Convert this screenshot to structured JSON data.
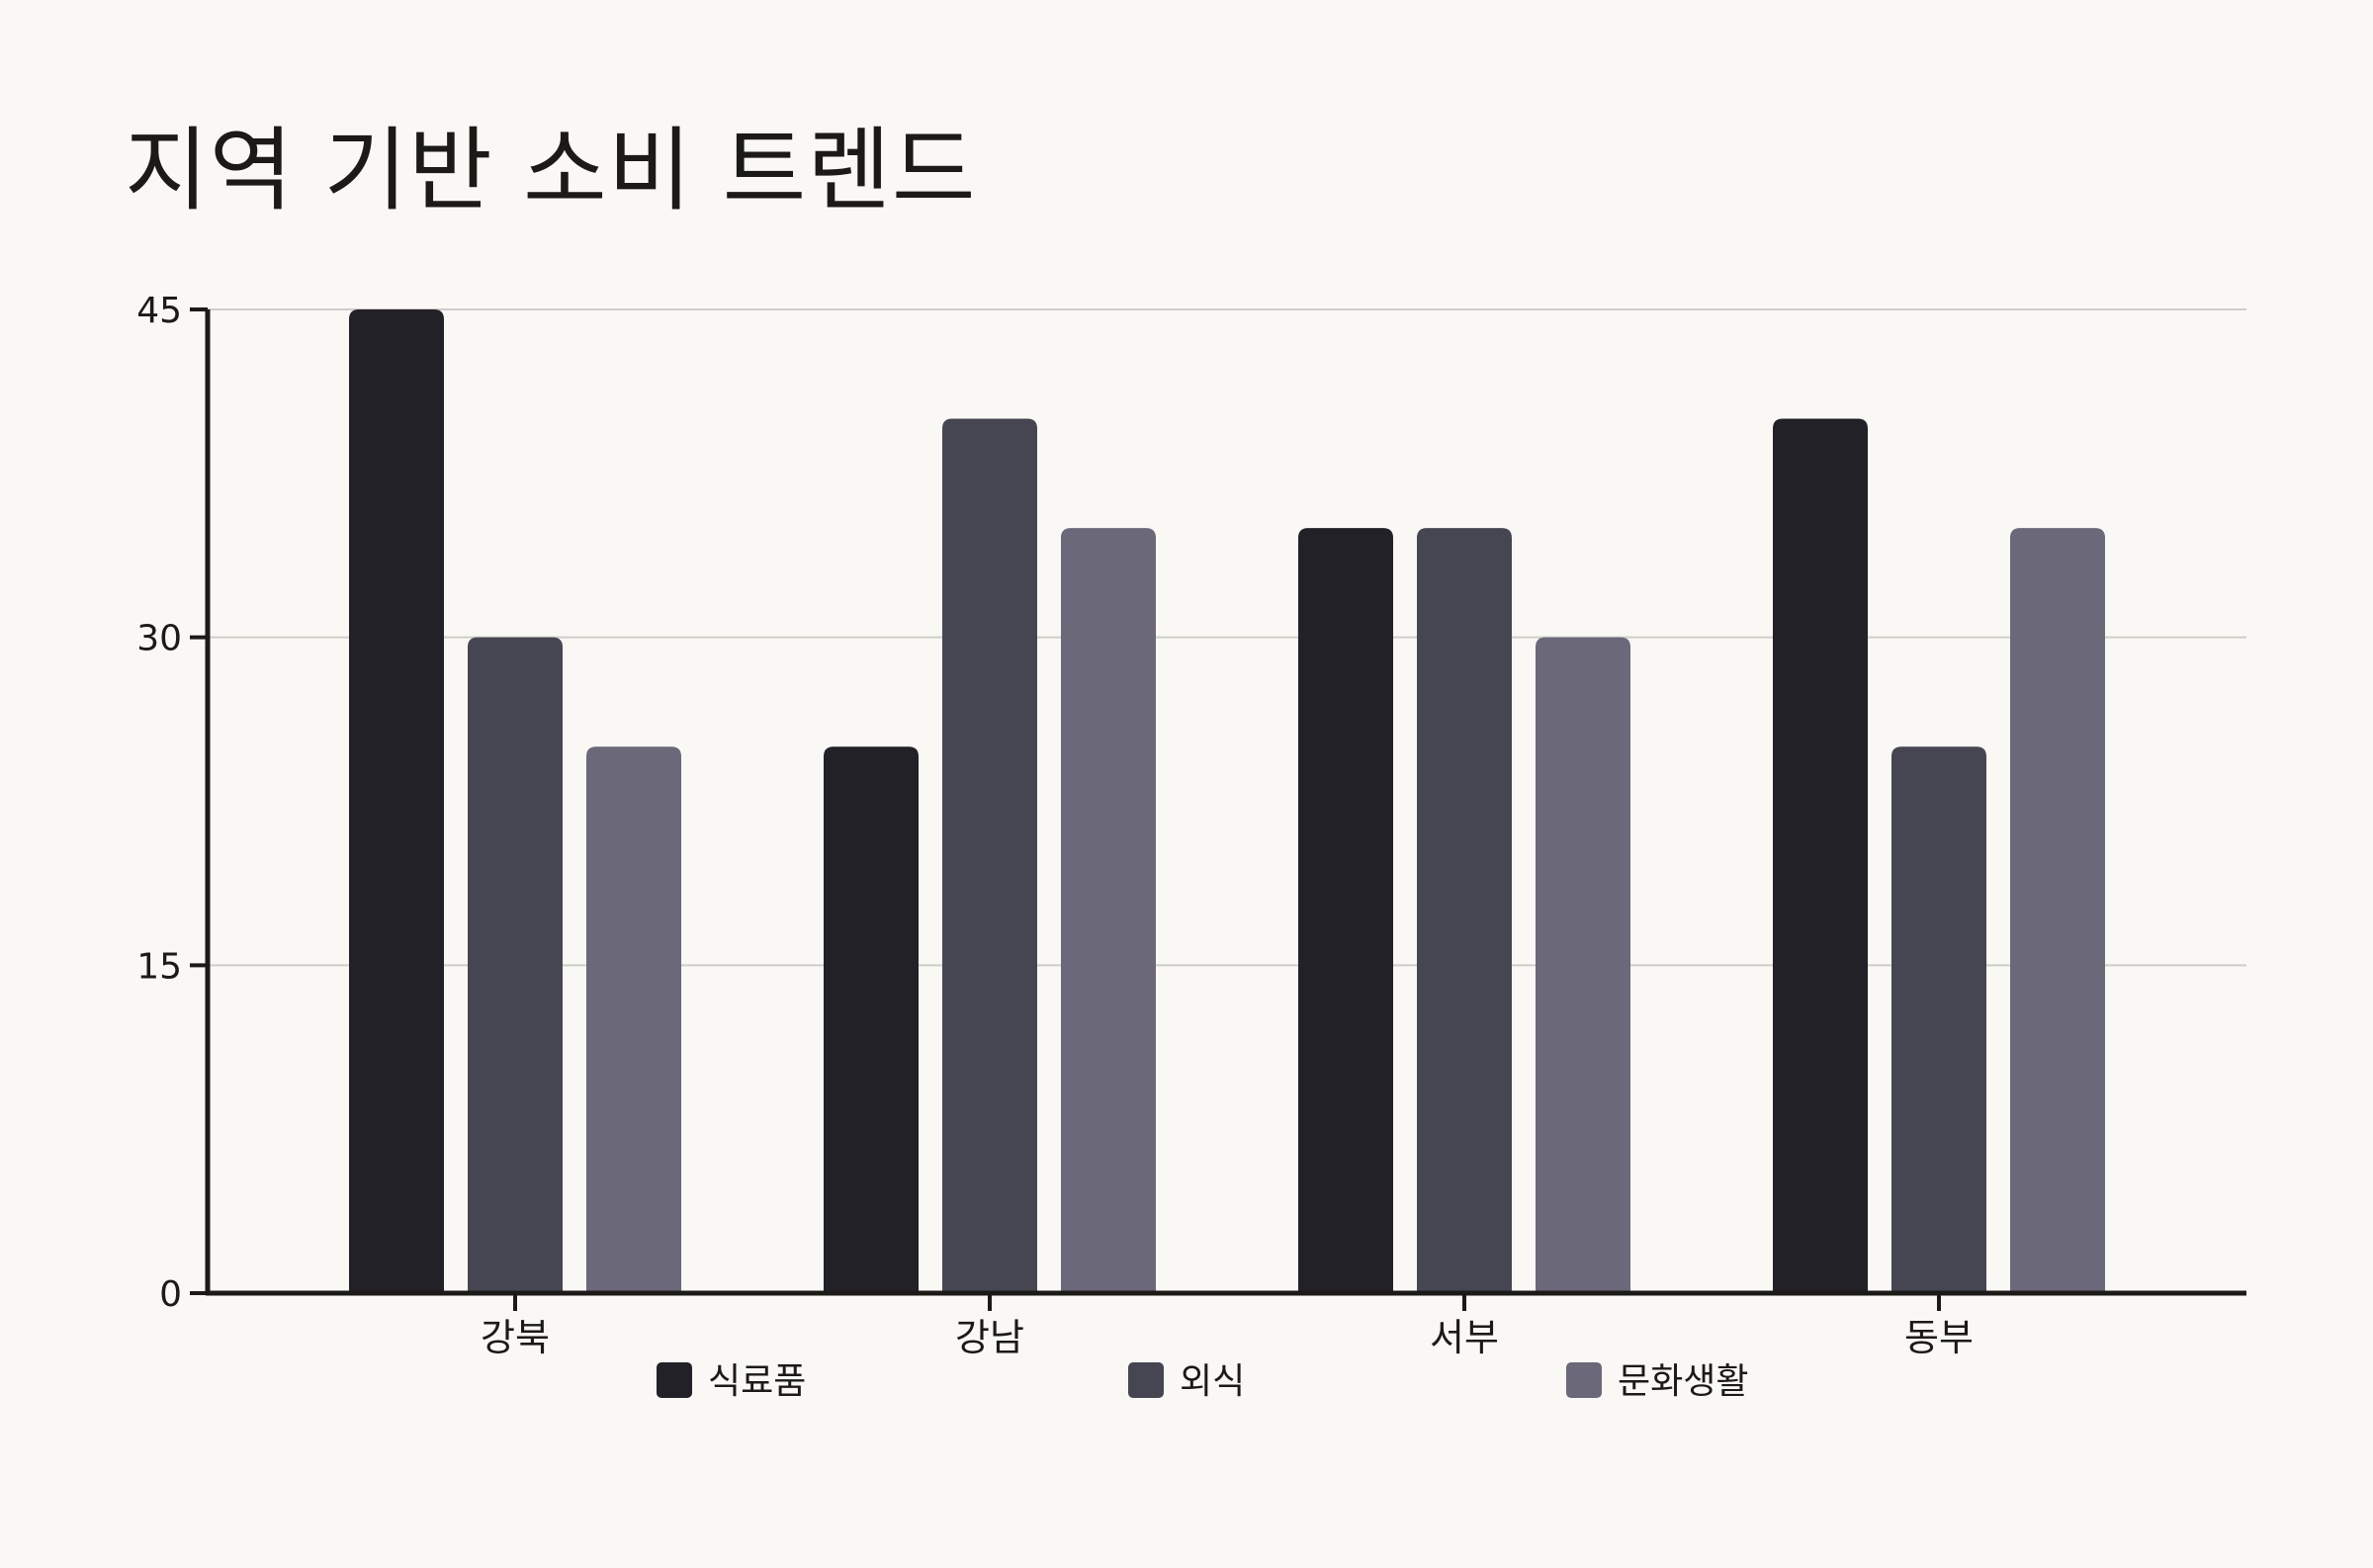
{
  "chart_data": {
    "type": "bar",
    "title": "지역 기반 소비 트렌드",
    "xlabel": "",
    "ylabel": "",
    "categories": [
      "강북",
      "강남",
      "서부",
      "동부"
    ],
    "series": [
      {
        "name": "식료품",
        "values": [
          45,
          25,
          35,
          40
        ],
        "color": "#222127"
      },
      {
        "name": "외식",
        "values": [
          30,
          40,
          35,
          25
        ],
        "color": "#464653"
      },
      {
        "name": "문화생활",
        "values": [
          25,
          35,
          30,
          35
        ],
        "color": "#6a6879"
      }
    ],
    "ylim": [
      0,
      45
    ],
    "yticks": [
      0,
      15,
      30,
      45
    ],
    "grid": true,
    "legend": "bottom"
  }
}
